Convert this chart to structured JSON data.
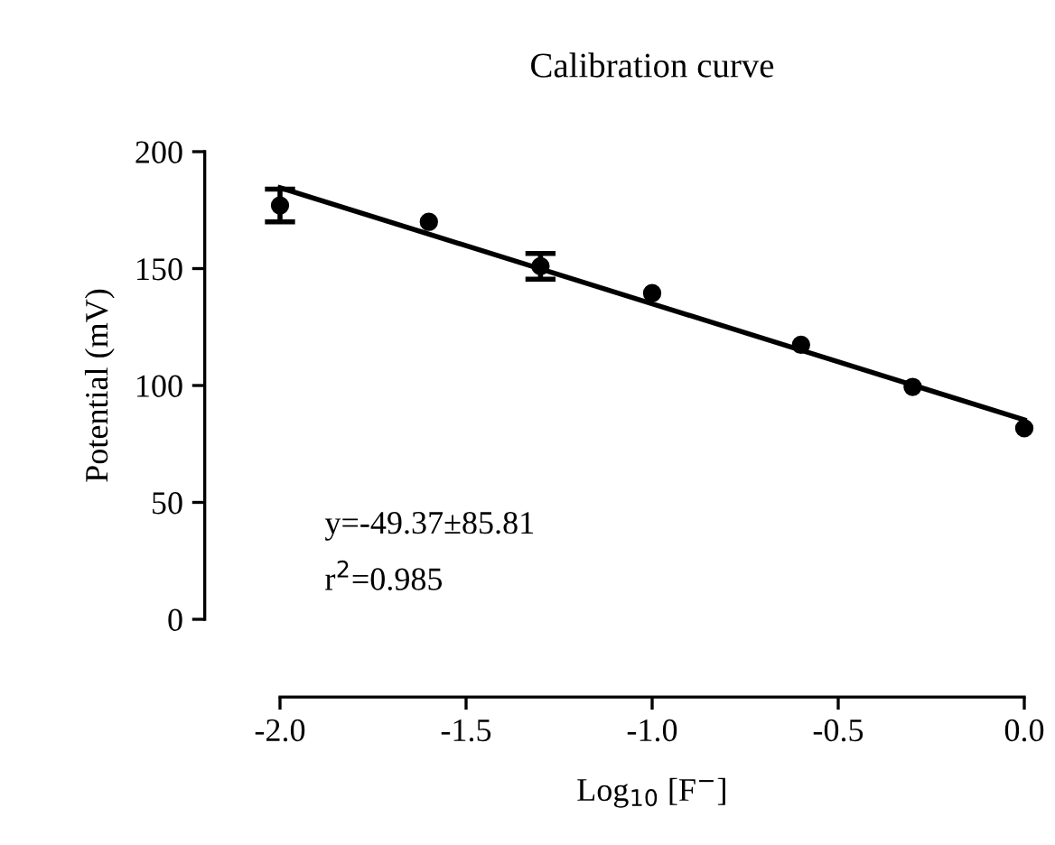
{
  "chart_data": {
    "type": "scatter",
    "title": "Calibration curve",
    "xlabel": "Log$_{10}$ [F$^{−}$]",
    "ylabel": "Potential (mV)",
    "xlim": [
      -2.0,
      0.0
    ],
    "ylim": [
      0,
      200
    ],
    "xticks": [
      {
        "value": -2.0,
        "label": "-2.0"
      },
      {
        "value": -1.5,
        "label": "-1.5"
      },
      {
        "value": -1.0,
        "label": "-1.0"
      },
      {
        "value": -0.5,
        "label": "-0.5"
      },
      {
        "value": 0.0,
        "label": "0.0"
      }
    ],
    "yticks": [
      0,
      50,
      100,
      150,
      200
    ],
    "grid": false,
    "legend": false,
    "series": [
      {
        "marker": "circle",
        "color": "#000000",
        "x": [
          -2.0,
          -1.6,
          -1.3,
          -1.0,
          -0.6,
          -0.3,
          0.0
        ],
        "values": [
          177,
          170,
          151,
          139.5,
          117.4,
          99.4,
          81.7
        ],
        "errors": [
          7,
          null,
          5.5,
          null,
          null,
          null,
          null
        ]
      },
      {
        "type": "line",
        "color": "#000000",
        "line_style": "solid",
        "x": [
          -2.0,
          0.0
        ],
        "values": [
          184.6,
          85.3
        ]
      }
    ],
    "annotations": [
      "y=-49.37±85.81",
      "r$^{2}$=0.985"
    ]
  }
}
